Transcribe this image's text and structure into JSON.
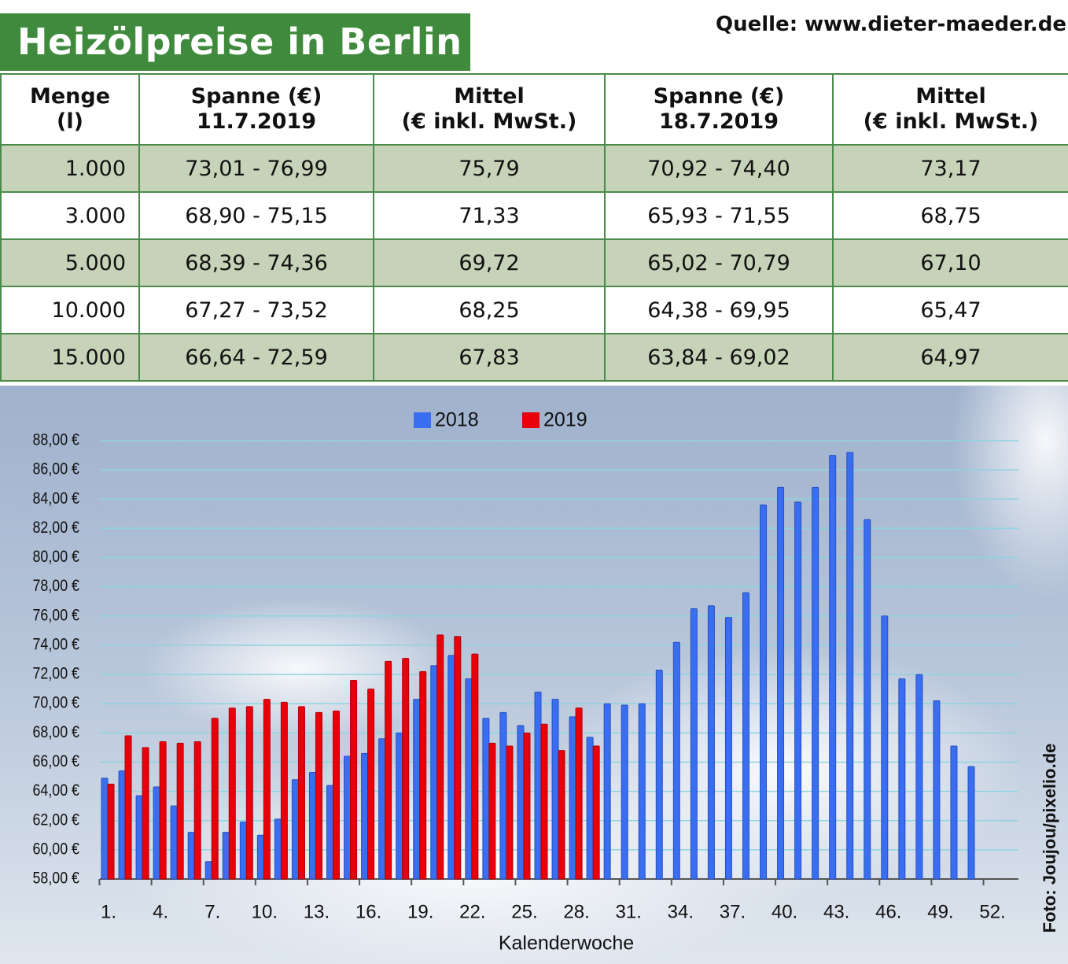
{
  "header": {
    "title": "Heizölpreise in Berlin",
    "source": "Quelle: www.dieter-maeder.de"
  },
  "table": {
    "columns": [
      [
        "Menge",
        "(l)"
      ],
      [
        "Spanne (€)",
        "11.7.2019"
      ],
      [
        "Mittel",
        "(€ inkl. MwSt.)"
      ],
      [
        "Spanne (€)",
        "18.7.2019"
      ],
      [
        "Mittel",
        "(€ inkl. MwSt.)"
      ]
    ],
    "rows": [
      [
        "1.000",
        "73,01 - 76,99",
        "75,79",
        "70,92 - 74,40",
        "73,17"
      ],
      [
        "3.000",
        "68,90 - 75,15",
        "71,33",
        "65,93 - 71,55",
        "68,75"
      ],
      [
        "5.000",
        "68,39 - 74,36",
        "69,72",
        "65,02 - 70,79",
        "67,10"
      ],
      [
        "10.000",
        "67,27 - 73,52",
        "68,25",
        "64,38 - 69,95",
        "65,47"
      ],
      [
        "15.000",
        "66,64 - 72,59",
        "67,83",
        "63,84 - 69,02",
        "64,97"
      ]
    ]
  },
  "chart_data": {
    "type": "bar",
    "xlabel": "Kalenderwoche",
    "credit": "Foto: Joujou/pixelio.de",
    "legend": "top",
    "grid": true,
    "categories": [
      "1.",
      null,
      null,
      "4.",
      null,
      null,
      "7.",
      null,
      null,
      "10.",
      null,
      null,
      "13.",
      null,
      null,
      "16.",
      null,
      null,
      "19.",
      null,
      null,
      "22.",
      null,
      null,
      "25.",
      null,
      null,
      "28.",
      null,
      null,
      "31.",
      null,
      null,
      "34.",
      null,
      null,
      "37.",
      null,
      null,
      "40.",
      null,
      null,
      "43.",
      null,
      null,
      "46.",
      null,
      null,
      "49.",
      null,
      null,
      "52."
    ],
    "series": [
      {
        "name": "2018",
        "color": "#3a6ef0",
        "values": [
          64.9,
          65.4,
          63.7,
          64.3,
          63.0,
          61.2,
          59.2,
          61.2,
          61.9,
          61.0,
          62.1,
          64.8,
          65.3,
          64.4,
          66.4,
          66.6,
          67.6,
          68.0,
          70.3,
          72.6,
          73.3,
          71.7,
          69.0,
          69.4,
          68.5,
          70.8,
          70.3,
          69.1,
          67.7,
          70.0,
          69.9,
          70.0,
          72.3,
          74.2,
          76.5,
          76.7,
          75.9,
          77.6,
          83.6,
          84.8,
          83.8,
          84.8,
          87.0,
          87.2,
          82.6,
          76.0,
          71.7,
          72.0,
          70.2,
          67.1,
          65.7,
          null
        ]
      },
      {
        "name": "2019",
        "color": "#e8000b",
        "values": [
          64.5,
          67.8,
          67.0,
          67.4,
          67.3,
          67.4,
          69.0,
          69.7,
          69.8,
          70.3,
          70.1,
          69.8,
          69.4,
          69.5,
          71.6,
          71.0,
          72.9,
          73.1,
          72.2,
          74.7,
          74.6,
          73.4,
          67.3,
          67.1,
          68.0,
          68.6,
          66.8,
          69.7,
          67.1,
          null,
          null,
          null,
          null,
          null,
          null,
          null,
          null,
          null,
          null,
          null,
          null,
          null,
          null,
          null,
          null,
          null,
          null,
          null,
          null,
          null,
          null,
          null
        ]
      }
    ],
    "ylim": [
      58,
      88
    ],
    "yticks": [
      {
        "value": 58,
        "label": "58,00 €"
      },
      {
        "value": 60,
        "label": "60,00 €"
      },
      {
        "value": 62,
        "label": "62,00 €"
      },
      {
        "value": 64,
        "label": "64,00 €"
      },
      {
        "value": 66,
        "label": "66,00 €"
      },
      {
        "value": 68,
        "label": "68,00 €"
      },
      {
        "value": 70,
        "label": "70,00 €"
      },
      {
        "value": 72,
        "label": "72,00 €"
      },
      {
        "value": 74,
        "label": "74,00 €"
      },
      {
        "value": 76,
        "label": "76,00 €"
      },
      {
        "value": 78,
        "label": "78,00 €"
      },
      {
        "value": 80,
        "label": "80,00 €"
      },
      {
        "value": 82,
        "label": "82,00 €"
      },
      {
        "value": 84,
        "label": "84,00 €"
      },
      {
        "value": 86,
        "label": "86,00 €"
      },
      {
        "value": 88,
        "label": "88,00 €"
      }
    ]
  }
}
